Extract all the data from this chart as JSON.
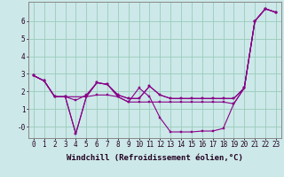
{
  "background_color": "#cce8e8",
  "grid_color": "#99ccbb",
  "line_color": "#880088",
  "xlabel": "Windchill (Refroidissement éolien,°C)",
  "xlabel_fontsize": 6.5,
  "tick_fontsize": 5.5,
  "xlim": [
    -0.5,
    23.5
  ],
  "ylim": [
    -0.65,
    7.1
  ],
  "yticks": [
    0,
    1,
    2,
    3,
    4,
    5,
    6
  ],
  "ytick_labels": [
    "-0",
    "1",
    "2",
    "3",
    "4",
    "5",
    "6"
  ],
  "series1_x": [
    0,
    1,
    2,
    3,
    4,
    5,
    6,
    7,
    8,
    9,
    10,
    11,
    12,
    13,
    14,
    15,
    16,
    17,
    18,
    19,
    20,
    21,
    22,
    23
  ],
  "series1_y": [
    2.9,
    2.6,
    1.7,
    1.7,
    1.5,
    1.8,
    2.5,
    2.4,
    1.8,
    1.6,
    1.6,
    2.3,
    1.8,
    1.6,
    1.6,
    1.6,
    1.6,
    1.6,
    1.6,
    1.6,
    2.2,
    6.0,
    6.7,
    6.5
  ],
  "series2_x": [
    0,
    1,
    2,
    3,
    4,
    5,
    6,
    7,
    8,
    9,
    10,
    11,
    12,
    13,
    14,
    15,
    16,
    17,
    18,
    19,
    20,
    21,
    22,
    23
  ],
  "series2_y": [
    2.9,
    2.6,
    1.7,
    1.7,
    -0.4,
    1.7,
    1.8,
    1.8,
    1.7,
    1.4,
    1.4,
    1.4,
    1.4,
    1.4,
    1.4,
    1.4,
    1.4,
    1.4,
    1.4,
    1.3,
    2.2,
    6.0,
    6.7,
    6.5
  ],
  "series3_x": [
    0,
    1,
    2,
    3,
    4,
    5,
    6,
    7,
    8,
    9,
    10,
    11,
    12,
    13,
    14,
    15,
    16,
    17,
    18,
    19,
    20,
    21,
    22,
    23
  ],
  "series3_y": [
    2.9,
    2.6,
    1.7,
    1.7,
    -0.4,
    1.7,
    2.5,
    2.4,
    1.7,
    1.4,
    2.2,
    1.7,
    0.5,
    -0.3,
    -0.3,
    -0.3,
    -0.25,
    -0.25,
    -0.1,
    1.3,
    2.2,
    6.0,
    6.7,
    6.5
  ],
  "series4_x": [
    0,
    1,
    2,
    3,
    5,
    6,
    7,
    8,
    9,
    10,
    11,
    12,
    13,
    14,
    15,
    16,
    17,
    18,
    19,
    20,
    21,
    22,
    23
  ],
  "series4_y": [
    2.9,
    2.6,
    1.7,
    1.7,
    1.7,
    2.5,
    2.4,
    1.8,
    1.6,
    1.6,
    2.3,
    1.8,
    1.6,
    1.6,
    1.6,
    1.6,
    1.6,
    1.6,
    1.6,
    2.2,
    6.0,
    6.7,
    6.5
  ]
}
